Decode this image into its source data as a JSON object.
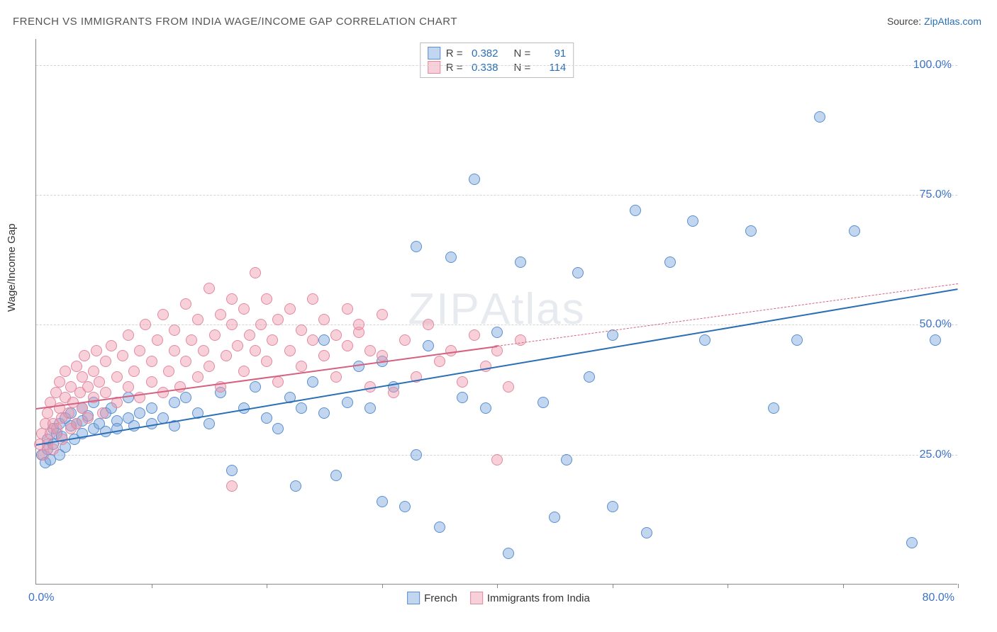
{
  "title": "FRENCH VS IMMIGRANTS FROM INDIA WAGE/INCOME GAP CORRELATION CHART",
  "source_prefix": "Source: ",
  "source_link": "ZipAtlas.com",
  "ylabel": "Wage/Income Gap",
  "watermark": "ZIPAtlas",
  "chart": {
    "type": "scatter",
    "xlim": [
      0,
      80
    ],
    "ylim": [
      0,
      105
    ],
    "xtick_positions": [
      0,
      10,
      20,
      30,
      40,
      50,
      60,
      70,
      80
    ],
    "x_axis_label_left": "0.0%",
    "x_axis_label_right": "80.0%",
    "yticks": [
      {
        "v": 25,
        "label": "25.0%"
      },
      {
        "v": 50,
        "label": "50.0%"
      },
      {
        "v": 75,
        "label": "75.0%"
      },
      {
        "v": 100,
        "label": "100.0%"
      }
    ],
    "grid_color": "#d5d5d5",
    "background_color": "#ffffff",
    "marker_radius": 8,
    "marker_border_width": 1,
    "series": [
      {
        "id": "french",
        "label": "French",
        "fill": "rgba(120,165,220,0.45)",
        "stroke": "#5a8fd0",
        "line_color": "#2a6fb5",
        "r_label": "R =",
        "r_value": "0.382",
        "n_label": "N =",
        "n_value": "91",
        "trend": {
          "x1": 0,
          "y1": 27,
          "x2": 80,
          "y2": 57,
          "solid_to_x": 80
        },
        "points": [
          [
            0.5,
            25
          ],
          [
            0.8,
            23.5
          ],
          [
            1,
            26
          ],
          [
            1,
            28
          ],
          [
            1.2,
            24
          ],
          [
            1.5,
            30
          ],
          [
            1.5,
            27
          ],
          [
            1.8,
            29
          ],
          [
            2,
            31
          ],
          [
            2,
            25
          ],
          [
            2.2,
            28.5
          ],
          [
            2.5,
            32
          ],
          [
            2.5,
            26.5
          ],
          [
            3,
            30.5
          ],
          [
            3,
            33
          ],
          [
            3.3,
            28
          ],
          [
            3.5,
            31
          ],
          [
            4,
            34
          ],
          [
            4,
            29
          ],
          [
            4,
            31.5
          ],
          [
            4.5,
            32.5
          ],
          [
            5,
            30
          ],
          [
            5,
            35
          ],
          [
            5.5,
            31
          ],
          [
            6,
            33
          ],
          [
            6,
            29.5
          ],
          [
            6.5,
            34
          ],
          [
            7,
            31.5
          ],
          [
            7,
            30
          ],
          [
            8,
            32
          ],
          [
            8,
            36
          ],
          [
            8.5,
            30.5
          ],
          [
            9,
            33
          ],
          [
            10,
            31
          ],
          [
            10,
            34
          ],
          [
            11,
            32
          ],
          [
            12,
            35
          ],
          [
            12,
            30.5
          ],
          [
            13,
            36
          ],
          [
            14,
            33
          ],
          [
            15,
            31
          ],
          [
            16,
            37
          ],
          [
            17,
            22
          ],
          [
            18,
            34
          ],
          [
            19,
            38
          ],
          [
            20,
            32
          ],
          [
            21,
            30
          ],
          [
            22,
            36
          ],
          [
            22.5,
            19
          ],
          [
            23,
            34
          ],
          [
            24,
            39
          ],
          [
            25,
            33
          ],
          [
            25,
            47
          ],
          [
            26,
            21
          ],
          [
            27,
            35
          ],
          [
            28,
            42
          ],
          [
            29,
            34
          ],
          [
            30,
            16
          ],
          [
            30,
            43
          ],
          [
            31,
            38
          ],
          [
            32,
            15
          ],
          [
            33,
            25
          ],
          [
            33,
            65
          ],
          [
            34,
            46
          ],
          [
            35,
            11
          ],
          [
            36,
            63
          ],
          [
            37,
            36
          ],
          [
            38,
            78
          ],
          [
            39,
            34
          ],
          [
            40,
            48.5
          ],
          [
            41,
            6
          ],
          [
            42,
            62
          ],
          [
            44,
            35
          ],
          [
            45,
            13
          ],
          [
            46,
            24
          ],
          [
            47,
            60
          ],
          [
            48,
            40
          ],
          [
            50,
            15
          ],
          [
            50,
            48
          ],
          [
            52,
            72
          ],
          [
            53,
            10
          ],
          [
            55,
            62
          ],
          [
            57,
            70
          ],
          [
            58,
            47
          ],
          [
            62,
            68
          ],
          [
            64,
            34
          ],
          [
            66,
            47
          ],
          [
            68,
            90
          ],
          [
            71,
            68
          ],
          [
            76,
            8
          ],
          [
            78,
            47
          ]
        ]
      },
      {
        "id": "india",
        "label": "Immigrants from India",
        "fill": "rgba(240,150,170,0.45)",
        "stroke": "#e389a0",
        "line_color": "#d46180",
        "r_label": "R =",
        "r_value": "0.338",
        "n_label": "N =",
        "n_value": "114",
        "trend": {
          "x1": 0,
          "y1": 34,
          "x2": 80,
          "y2": 58,
          "solid_to_x": 40
        },
        "points": [
          [
            0.3,
            27
          ],
          [
            0.5,
            29
          ],
          [
            0.6,
            25
          ],
          [
            0.8,
            31
          ],
          [
            1,
            27
          ],
          [
            1,
            33
          ],
          [
            1.2,
            29
          ],
          [
            1.2,
            35
          ],
          [
            1.5,
            31
          ],
          [
            1.5,
            26
          ],
          [
            1.7,
            37
          ],
          [
            1.8,
            30
          ],
          [
            2,
            34
          ],
          [
            2,
            39
          ],
          [
            2.2,
            32
          ],
          [
            2.3,
            28
          ],
          [
            2.5,
            36
          ],
          [
            2.5,
            41
          ],
          [
            2.8,
            33
          ],
          [
            3,
            38
          ],
          [
            3,
            30
          ],
          [
            3.2,
            35
          ],
          [
            3.5,
            42
          ],
          [
            3.5,
            31
          ],
          [
            3.8,
            37
          ],
          [
            4,
            40
          ],
          [
            4,
            34
          ],
          [
            4.2,
            44
          ],
          [
            4.5,
            38
          ],
          [
            4.5,
            32
          ],
          [
            5,
            41
          ],
          [
            5,
            36
          ],
          [
            5.2,
            45
          ],
          [
            5.5,
            39
          ],
          [
            5.8,
            33
          ],
          [
            6,
            43
          ],
          [
            6,
            37
          ],
          [
            6.5,
            46
          ],
          [
            7,
            40
          ],
          [
            7,
            35
          ],
          [
            7.5,
            44
          ],
          [
            8,
            38
          ],
          [
            8,
            48
          ],
          [
            8.5,
            41
          ],
          [
            9,
            36
          ],
          [
            9,
            45
          ],
          [
            9.5,
            50
          ],
          [
            10,
            39
          ],
          [
            10,
            43
          ],
          [
            10.5,
            47
          ],
          [
            11,
            37
          ],
          [
            11,
            52
          ],
          [
            11.5,
            41
          ],
          [
            12,
            45
          ],
          [
            12,
            49
          ],
          [
            12.5,
            38
          ],
          [
            13,
            43
          ],
          [
            13,
            54
          ],
          [
            13.5,
            47
          ],
          [
            14,
            40
          ],
          [
            14,
            51
          ],
          [
            14.5,
            45
          ],
          [
            15,
            42
          ],
          [
            15,
            57
          ],
          [
            15.5,
            48
          ],
          [
            16,
            38
          ],
          [
            16,
            52
          ],
          [
            16.5,
            44
          ],
          [
            17,
            50
          ],
          [
            17,
            55
          ],
          [
            17,
            19
          ],
          [
            17.5,
            46
          ],
          [
            18,
            41
          ],
          [
            18,
            53
          ],
          [
            18.5,
            48
          ],
          [
            19,
            45
          ],
          [
            19,
            60
          ],
          [
            19.5,
            50
          ],
          [
            20,
            43
          ],
          [
            20,
            55
          ],
          [
            20.5,
            47
          ],
          [
            21,
            51
          ],
          [
            21,
            39
          ],
          [
            22,
            53
          ],
          [
            22,
            45
          ],
          [
            23,
            49
          ],
          [
            23,
            42
          ],
          [
            24,
            55
          ],
          [
            24,
            47
          ],
          [
            25,
            51
          ],
          [
            25,
            44
          ],
          [
            26,
            48
          ],
          [
            26,
            40
          ],
          [
            27,
            53
          ],
          [
            27,
            46
          ],
          [
            28,
            48.5
          ],
          [
            28,
            50
          ],
          [
            29,
            45
          ],
          [
            29,
            38
          ],
          [
            30,
            52
          ],
          [
            30,
            44
          ],
          [
            31,
            37
          ],
          [
            32,
            47
          ],
          [
            33,
            40
          ],
          [
            34,
            50
          ],
          [
            35,
            43
          ],
          [
            36,
            45
          ],
          [
            37,
            39
          ],
          [
            38,
            48
          ],
          [
            39,
            42
          ],
          [
            40,
            24
          ],
          [
            40,
            45
          ],
          [
            41,
            38
          ],
          [
            42,
            47
          ]
        ]
      }
    ]
  }
}
